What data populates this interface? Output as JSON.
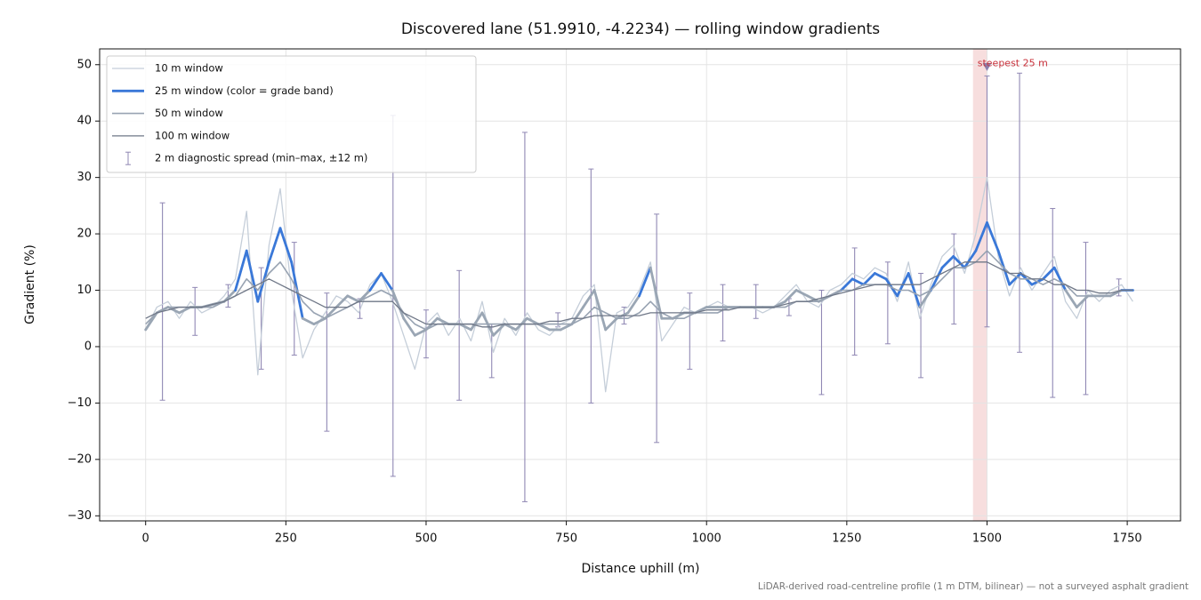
{
  "chart_data": {
    "type": "line",
    "title": "Discovered lane (51.9910, -4.2234) — rolling window gradients",
    "x_label": "Distance uphill (m)",
    "y_label": "Gradient (%)",
    "footnote": "LiDAR-derived road-centreline profile (1 m DTM, bilinear) — not a surveyed asphalt gradient",
    "xlim": [
      -82,
      1845
    ],
    "ylim": [
      -30.9,
      52.8
    ],
    "xticks": [
      0,
      250,
      500,
      750,
      1000,
      1250,
      1500,
      1750
    ],
    "yticks": [
      {
        "value": -30,
        "label": "−30"
      },
      {
        "value": -20,
        "label": "−20"
      },
      {
        "value": -10,
        "label": "−10"
      },
      0,
      10,
      20,
      30,
      40,
      50
    ],
    "grid": true,
    "legend": "upper left",
    "x": [
      0,
      20,
      40,
      60,
      80,
      100,
      120,
      140,
      160,
      180,
      200,
      220,
      240,
      260,
      280,
      300,
      320,
      340,
      360,
      380,
      400,
      420,
      440,
      460,
      480,
      500,
      520,
      540,
      560,
      580,
      600,
      620,
      640,
      660,
      680,
      700,
      720,
      740,
      760,
      780,
      800,
      820,
      840,
      860,
      880,
      900,
      920,
      940,
      960,
      980,
      1000,
      1020,
      1040,
      1060,
      1080,
      1100,
      1120,
      1140,
      1160,
      1180,
      1200,
      1220,
      1240,
      1260,
      1280,
      1300,
      1320,
      1340,
      1360,
      1380,
      1400,
      1420,
      1440,
      1460,
      1480,
      1500,
      1520,
      1540,
      1560,
      1580,
      1600,
      1620,
      1640,
      1660,
      1680,
      1700,
      1720,
      1740,
      1760
    ],
    "series": [
      {
        "name": "10 m window",
        "color": "#c5ced9",
        "width": 1.3,
        "values": [
          3,
          7,
          8,
          5,
          8,
          6,
          7,
          9,
          12,
          24,
          -5,
          18,
          28,
          10,
          -2,
          3,
          6,
          9,
          8,
          6,
          11,
          13,
          8,
          2,
          -4,
          4,
          6,
          2,
          5,
          1,
          8,
          -1,
          5,
          2,
          6,
          3,
          2,
          4,
          5,
          9,
          11,
          -8,
          6,
          7,
          10,
          15,
          1,
          4,
          7,
          6,
          7,
          8,
          7,
          7,
          7,
          6,
          7,
          9,
          11,
          8,
          7,
          10,
          11,
          13,
          12,
          14,
          13,
          8,
          15,
          5,
          11,
          16,
          18,
          13,
          20,
          30,
          16,
          9,
          14,
          10,
          13,
          16,
          8,
          5,
          10,
          8,
          10,
          11,
          8
        ]
      },
      {
        "name": "25 m window (color = grade band)",
        "color": "#9aa6b4",
        "width": 2.8,
        "color_bands": [
          {
            "above": 10,
            "color": "#3a78d8"
          },
          {
            "above": 20,
            "color": "#e08a00"
          }
        ],
        "legend_color": "#3a78d8",
        "values": [
          3,
          6,
          7,
          6,
          7,
          7,
          7.5,
          8,
          10,
          17,
          8,
          15,
          21,
          15,
          5,
          4,
          5,
          7,
          9,
          8,
          10,
          13,
          10,
          5,
          2,
          3,
          5,
          4,
          4,
          3,
          6,
          2,
          4,
          3,
          5,
          4,
          3,
          3,
          4,
          7,
          10,
          3,
          5,
          6,
          9,
          14,
          5,
          5,
          6,
          6,
          7,
          7,
          7,
          7,
          7,
          7,
          7,
          8,
          10,
          9,
          8,
          9,
          10,
          12,
          11,
          13,
          12,
          9,
          13,
          7,
          10,
          14,
          16,
          14,
          17,
          22,
          17,
          11,
          13,
          11,
          12,
          14,
          10,
          7,
          9,
          9,
          9,
          10,
          10
        ]
      },
      {
        "name": "50 m window",
        "color": "#98a3b2",
        "width": 1.6,
        "values": [
          4,
          6,
          7,
          7,
          7,
          7,
          7,
          8,
          9,
          12,
          10,
          13,
          15,
          12,
          8,
          6,
          5,
          6,
          7,
          8,
          9,
          10,
          9,
          6,
          4,
          3,
          4,
          4,
          4,
          4,
          4,
          4,
          4,
          4,
          4,
          4,
          4,
          4,
          4,
          5,
          7,
          6,
          5,
          5,
          6,
          8,
          6,
          5,
          5,
          6,
          6,
          6,
          7,
          7,
          7,
          7,
          7,
          7,
          8,
          8,
          8,
          9,
          10,
          10,
          11,
          11,
          11,
          10,
          10,
          9,
          10,
          12,
          14,
          14,
          15,
          17,
          15,
          13,
          12,
          12,
          11,
          12,
          11,
          9,
          9,
          9,
          9,
          10,
          10
        ]
      },
      {
        "name": "100 m window",
        "color": "#6f7787",
        "width": 1.3,
        "values": [
          5,
          6,
          6.5,
          7,
          7,
          7,
          7.5,
          8,
          9,
          10,
          11,
          12,
          11,
          10,
          9,
          8,
          7,
          7,
          7,
          8,
          8,
          8,
          8,
          6,
          5,
          4,
          4,
          4,
          4,
          4,
          3.5,
          3.5,
          4,
          4,
          4,
          4,
          4.5,
          4.5,
          5,
          5,
          5.5,
          5.5,
          5.5,
          5.5,
          5.5,
          6,
          6,
          6,
          6,
          6,
          6.5,
          6.5,
          6.5,
          7,
          7,
          7,
          7,
          7.5,
          8,
          8,
          8.5,
          9,
          9.5,
          10,
          10.5,
          11,
          11,
          11,
          11,
          11,
          12,
          13,
          14,
          15,
          15,
          15,
          14,
          13,
          13,
          12,
          12,
          11,
          11,
          10,
          10,
          9.5,
          9.5,
          10,
          10
        ]
      }
    ],
    "error_bars": {
      "name": "2 m diagnostic spread (min–max, ±12 m)",
      "color": "#9088b4",
      "x": [
        30,
        88,
        147,
        206,
        265,
        323,
        382,
        441,
        500,
        559,
        617,
        676,
        735,
        794,
        853,
        911,
        970,
        1029,
        1088,
        1147,
        1205,
        1264,
        1323,
        1382,
        1441,
        1500,
        1558,
        1617,
        1676,
        1735
      ],
      "low": [
        -9.5,
        2,
        7,
        -4,
        -1.5,
        -15,
        5,
        -23,
        -2,
        -9.5,
        -5.5,
        -27.5,
        3.5,
        -10,
        4,
        -17,
        -4,
        1,
        5,
        5.5,
        -8.5,
        -1.5,
        0.5,
        -5.5,
        4,
        3.5,
        -1,
        -9,
        -8.5,
        9
      ],
      "high": [
        25.5,
        10.5,
        11,
        14,
        18.5,
        9.5,
        8.5,
        41,
        6.5,
        13.5,
        4,
        38,
        6,
        31.5,
        7,
        23.5,
        9.5,
        11,
        11,
        8.5,
        10,
        17.5,
        15,
        13,
        20,
        48,
        48.5,
        24.5,
        18.5,
        12
      ]
    },
    "steepest_span": {
      "x": [
        1475,
        1500
      ],
      "color": "#e8a0a0"
    },
    "annotation": {
      "text": "steepest 25 m",
      "x": 1483,
      "y": 50.2,
      "color": "#c8303a"
    },
    "steepest_marker": {
      "x": 1500,
      "y": 49.5,
      "color": "#8a7fae"
    }
  }
}
